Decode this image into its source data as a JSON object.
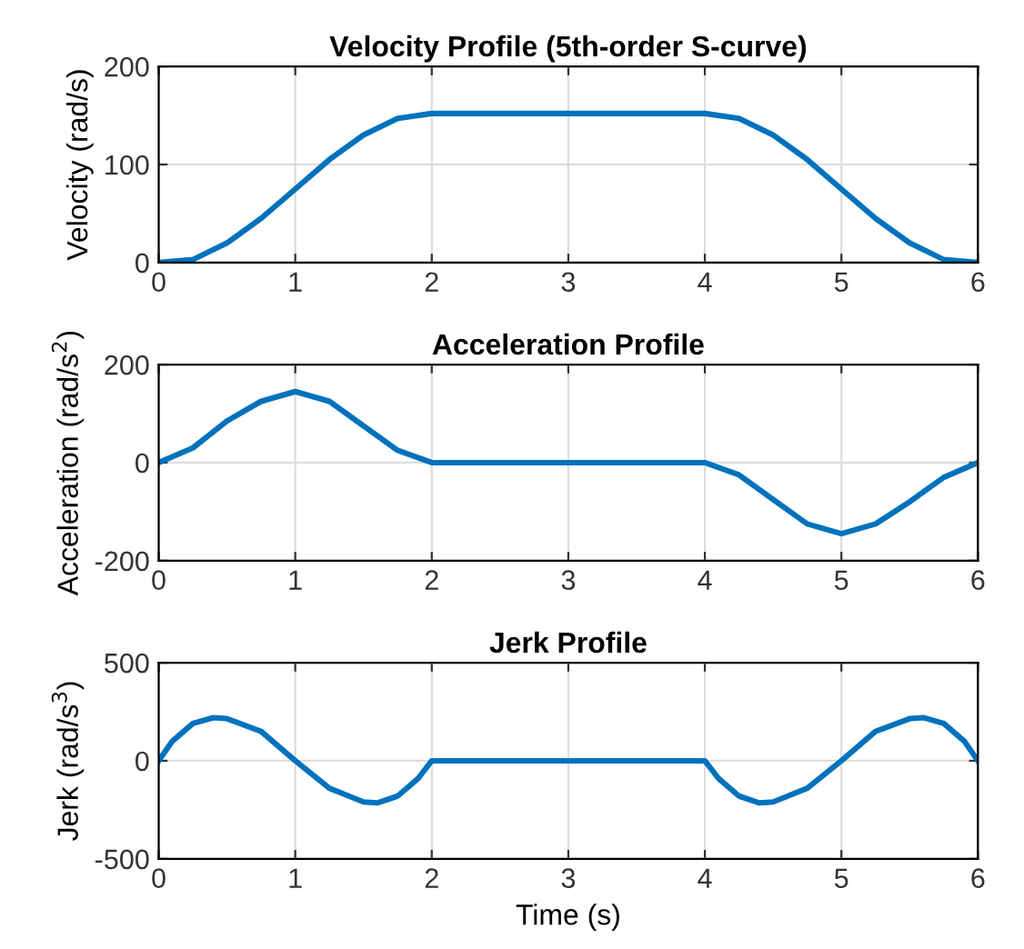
{
  "chart_data": [
    {
      "type": "line",
      "title": "Velocity Profile (5th-order S-curve)",
      "ylabel": "Velocity (rad/s)",
      "xlim": [
        0,
        6
      ],
      "xticks": [
        0,
        1,
        2,
        3,
        4,
        5,
        6
      ],
      "ylim": [
        0,
        200
      ],
      "yticks": [
        0,
        100,
        200
      ],
      "grid": true,
      "legend": false,
      "x": [
        0,
        0.25,
        0.5,
        0.75,
        1,
        1.25,
        1.5,
        1.75,
        2,
        3,
        4,
        4.25,
        4.5,
        4.75,
        5,
        5.25,
        5.5,
        5.75,
        6
      ],
      "series": [
        {
          "color": "#0072bd",
          "values": [
            0,
            3,
            20,
            45,
            75,
            105,
            130,
            147,
            152,
            152,
            152,
            147,
            130,
            105,
            75,
            45,
            20,
            3,
            0
          ]
        }
      ]
    },
    {
      "type": "line",
      "title": "Acceleration Profile",
      "ylabel": "Acceleration (rad/s$^{2}$)",
      "xlim": [
        0,
        6
      ],
      "xticks": [
        0,
        1,
        2,
        3,
        4,
        5,
        6
      ],
      "ylim": [
        -200,
        200
      ],
      "yticks": [
        -200,
        0,
        200
      ],
      "grid": true,
      "legend": false,
      "x": [
        0,
        0.25,
        0.5,
        0.75,
        1,
        1.25,
        1.5,
        1.75,
        2,
        3,
        4,
        4.25,
        4.5,
        4.75,
        5,
        5.25,
        5.5,
        5.75,
        6
      ],
      "series": [
        {
          "color": "#0072bd",
          "values": [
            0,
            30,
            85,
            125,
            145,
            125,
            75,
            25,
            0,
            0,
            0,
            -25,
            -75,
            -125,
            -145,
            -125,
            -80,
            -30,
            0
          ]
        }
      ]
    },
    {
      "type": "line",
      "title": "Jerk Profile",
      "xlabel": "Time (s)",
      "ylabel": "Jerk (rad/s$^{3}$)",
      "xlim": [
        0,
        6
      ],
      "xticks": [
        0,
        1,
        2,
        3,
        4,
        5,
        6
      ],
      "ylim": [
        -500,
        500
      ],
      "yticks": [
        -500,
        0,
        500
      ],
      "grid": true,
      "legend": false,
      "x": [
        0,
        0.1,
        0.25,
        0.4,
        0.5,
        0.75,
        1,
        1.25,
        1.5,
        1.6,
        1.75,
        1.9,
        2,
        3,
        4,
        4.1,
        4.25,
        4.4,
        4.5,
        4.75,
        5,
        5.25,
        5.5,
        5.6,
        5.75,
        5.9,
        6
      ],
      "series": [
        {
          "color": "#0072bd",
          "values": [
            0,
            100,
            190,
            220,
            215,
            150,
            0,
            -140,
            -210,
            -215,
            -180,
            -90,
            0,
            0,
            0,
            -90,
            -180,
            -215,
            -210,
            -140,
            0,
            150,
            215,
            220,
            190,
            100,
            0
          ]
        }
      ]
    }
  ]
}
